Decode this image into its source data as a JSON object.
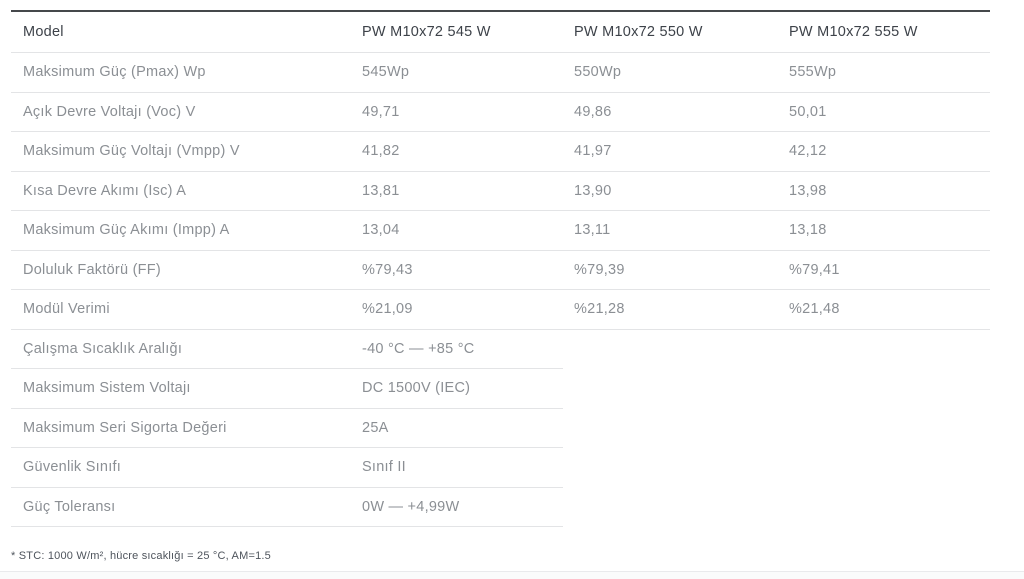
{
  "table": {
    "columns": [
      "Model",
      "PW M10x72 545 W",
      "PW M10x72 550 W",
      "PW M10x72 555 W"
    ],
    "rows": [
      {
        "label": "Maksimum Güç (Pmax) Wp",
        "values": [
          "545Wp",
          "550Wp",
          "555Wp"
        ]
      },
      {
        "label": "Açık Devre Voltajı (Voc) V",
        "values": [
          "49,71",
          "49,86",
          "50,01"
        ]
      },
      {
        "label": "Maksimum Güç Voltajı (Vmpp) V",
        "values": [
          "41,82",
          "41,97",
          "42,12"
        ]
      },
      {
        "label": "Kısa Devre Akımı (Isc) A",
        "values": [
          "13,81",
          "13,90",
          "13,98"
        ]
      },
      {
        "label": "Maksimum Güç Akımı (Impp) A",
        "values": [
          "13,04",
          "13,11",
          "13,18"
        ]
      },
      {
        "label": "Doluluk Faktörü (FF)",
        "values": [
          "%79,43",
          "%79,39",
          "%79,41"
        ]
      },
      {
        "label": "Modül Verimi",
        "values": [
          "%21,09",
          "%21,28",
          "%21,48"
        ]
      }
    ],
    "single_rows": [
      {
        "label": "Çalışma Sıcaklık Aralığı",
        "value": "-40 °C — +85 °C"
      },
      {
        "label": "Maksimum Sistem Voltajı",
        "value": "DC 1500V (IEC)"
      },
      {
        "label": "Maksimum Seri Sigorta Değeri",
        "value": "25A"
      },
      {
        "label": "Güvenlik Sınıfı",
        "value": "Sınıf II"
      },
      {
        "label": "Güç Toleransı",
        "value": "0W — +4,99W"
      }
    ],
    "footnote": "* STC: 1000 W/m², hücre sıcaklığı = 25 °C, AM=1.5"
  },
  "colors": {
    "top_border": "#45484b",
    "row_separator": "#e3e4e6",
    "header_text": "#3d4249",
    "body_text": "#8b8f94",
    "footnote_text": "#4e545c",
    "background": "#ffffff"
  }
}
